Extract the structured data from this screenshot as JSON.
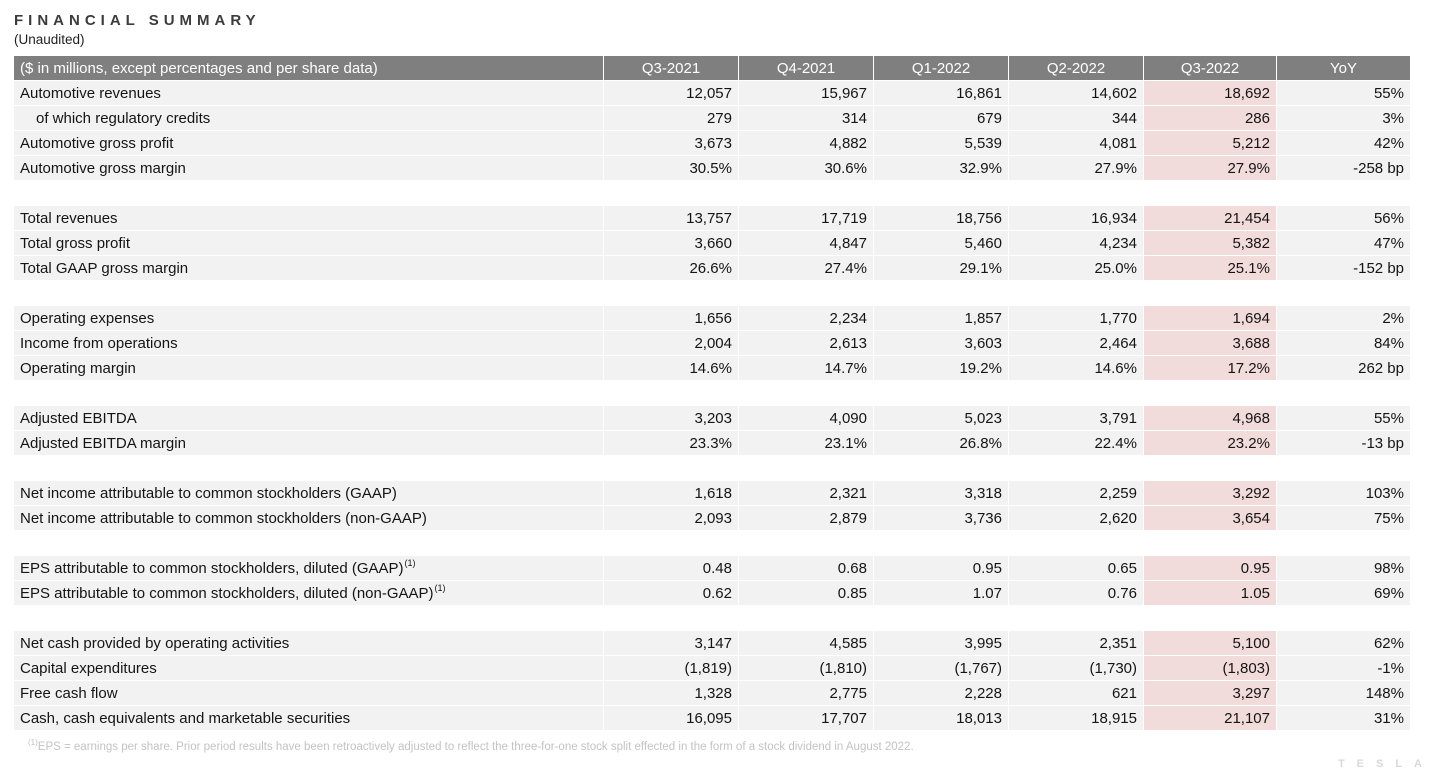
{
  "page": {
    "title": "FINANCIAL SUMMARY",
    "subtitle": "(Unaudited)"
  },
  "table": {
    "header": {
      "label": "($ in millions, except percentages and per share data)",
      "columns": [
        "Q3-2021",
        "Q4-2021",
        "Q1-2022",
        "Q2-2022",
        "Q3-2022",
        "YoY"
      ],
      "highlighted_column": "Q3-2022"
    },
    "sections": [
      {
        "rows": [
          {
            "label": "Automotive revenues",
            "indent": false,
            "values": [
              "12,057",
              "15,967",
              "16,861",
              "14,602",
              "18,692",
              "55%"
            ]
          },
          {
            "label": "of which regulatory credits",
            "indent": true,
            "values": [
              "279",
              "314",
              "679",
              "344",
              "286",
              "3%"
            ]
          },
          {
            "label": "Automotive gross profit",
            "indent": false,
            "values": [
              "3,673",
              "4,882",
              "5,539",
              "4,081",
              "5,212",
              "42%"
            ]
          },
          {
            "label": "Automotive gross margin",
            "indent": false,
            "values": [
              "30.5%",
              "30.6%",
              "32.9%",
              "27.9%",
              "27.9%",
              "-258 bp"
            ]
          }
        ]
      },
      {
        "rows": [
          {
            "label": "Total revenues",
            "indent": false,
            "values": [
              "13,757",
              "17,719",
              "18,756",
              "16,934",
              "21,454",
              "56%"
            ]
          },
          {
            "label": "Total gross profit",
            "indent": false,
            "values": [
              "3,660",
              "4,847",
              "5,460",
              "4,234",
              "5,382",
              "47%"
            ]
          },
          {
            "label": "Total GAAP gross margin",
            "indent": false,
            "values": [
              "26.6%",
              "27.4%",
              "29.1%",
              "25.0%",
              "25.1%",
              "-152 bp"
            ]
          }
        ]
      },
      {
        "rows": [
          {
            "label": "Operating expenses",
            "indent": false,
            "values": [
              "1,656",
              "2,234",
              "1,857",
              "1,770",
              "1,694",
              "2%"
            ]
          },
          {
            "label": "Income from operations",
            "indent": false,
            "values": [
              "2,004",
              "2,613",
              "3,603",
              "2,464",
              "3,688",
              "84%"
            ]
          },
          {
            "label": "Operating margin",
            "indent": false,
            "values": [
              "14.6%",
              "14.7%",
              "19.2%",
              "14.6%",
              "17.2%",
              "262 bp"
            ]
          }
        ]
      },
      {
        "rows": [
          {
            "label": "Adjusted EBITDA",
            "indent": false,
            "values": [
              "3,203",
              "4,090",
              "5,023",
              "3,791",
              "4,968",
              "55%"
            ]
          },
          {
            "label": "Adjusted EBITDA margin",
            "indent": false,
            "values": [
              "23.3%",
              "23.1%",
              "26.8%",
              "22.4%",
              "23.2%",
              "-13 bp"
            ]
          }
        ]
      },
      {
        "rows": [
          {
            "label": "Net income attributable to common stockholders (GAAP)",
            "indent": false,
            "values": [
              "1,618",
              "2,321",
              "3,318",
              "2,259",
              "3,292",
              "103%"
            ]
          },
          {
            "label": "Net income attributable to common stockholders (non-GAAP)",
            "indent": false,
            "values": [
              "2,093",
              "2,879",
              "3,736",
              "2,620",
              "3,654",
              "75%"
            ]
          }
        ]
      },
      {
        "rows": [
          {
            "label": "EPS attributable to common stockholders, diluted (GAAP)",
            "superscript": "(1)",
            "indent": false,
            "values": [
              "0.48",
              "0.68",
              "0.95",
              "0.65",
              "0.95",
              "98%"
            ]
          },
          {
            "label": "EPS attributable to common stockholders, diluted (non-GAAP)",
            "superscript": "(1)",
            "indent": false,
            "values": [
              "0.62",
              "0.85",
              "1.07",
              "0.76",
              "1.05",
              "69%"
            ]
          }
        ]
      },
      {
        "rows": [
          {
            "label": "Net cash provided by operating activities",
            "indent": false,
            "values": [
              "3,147",
              "4,585",
              "3,995",
              "2,351",
              "5,100",
              "62%"
            ]
          },
          {
            "label": "Capital expenditures",
            "indent": false,
            "values": [
              "(1,819)",
              "(1,810)",
              "(1,767)",
              "(1,730)",
              "(1,803)",
              "-1%"
            ]
          },
          {
            "label": "Free cash flow",
            "indent": false,
            "values": [
              "1,328",
              "2,775",
              "2,228",
              "621",
              "3,297",
              "148%"
            ]
          },
          {
            "label": "Cash, cash equivalents and marketable securities",
            "indent": false,
            "values": [
              "16,095",
              "17,707",
              "18,013",
              "18,915",
              "21,107",
              "31%"
            ]
          }
        ]
      }
    ]
  },
  "footnote": {
    "superscript": "(1)",
    "text": "EPS = earnings per share. Prior period results have been retroactively adjusted to reflect the three-for-one stock split effected in the form of a stock dividend in August 2022."
  },
  "watermark": "TESLA",
  "colors": {
    "header_bg": "#7f7f7f",
    "row_bg": "#f2f2f2",
    "highlight_bg": "#f2dcdb"
  }
}
